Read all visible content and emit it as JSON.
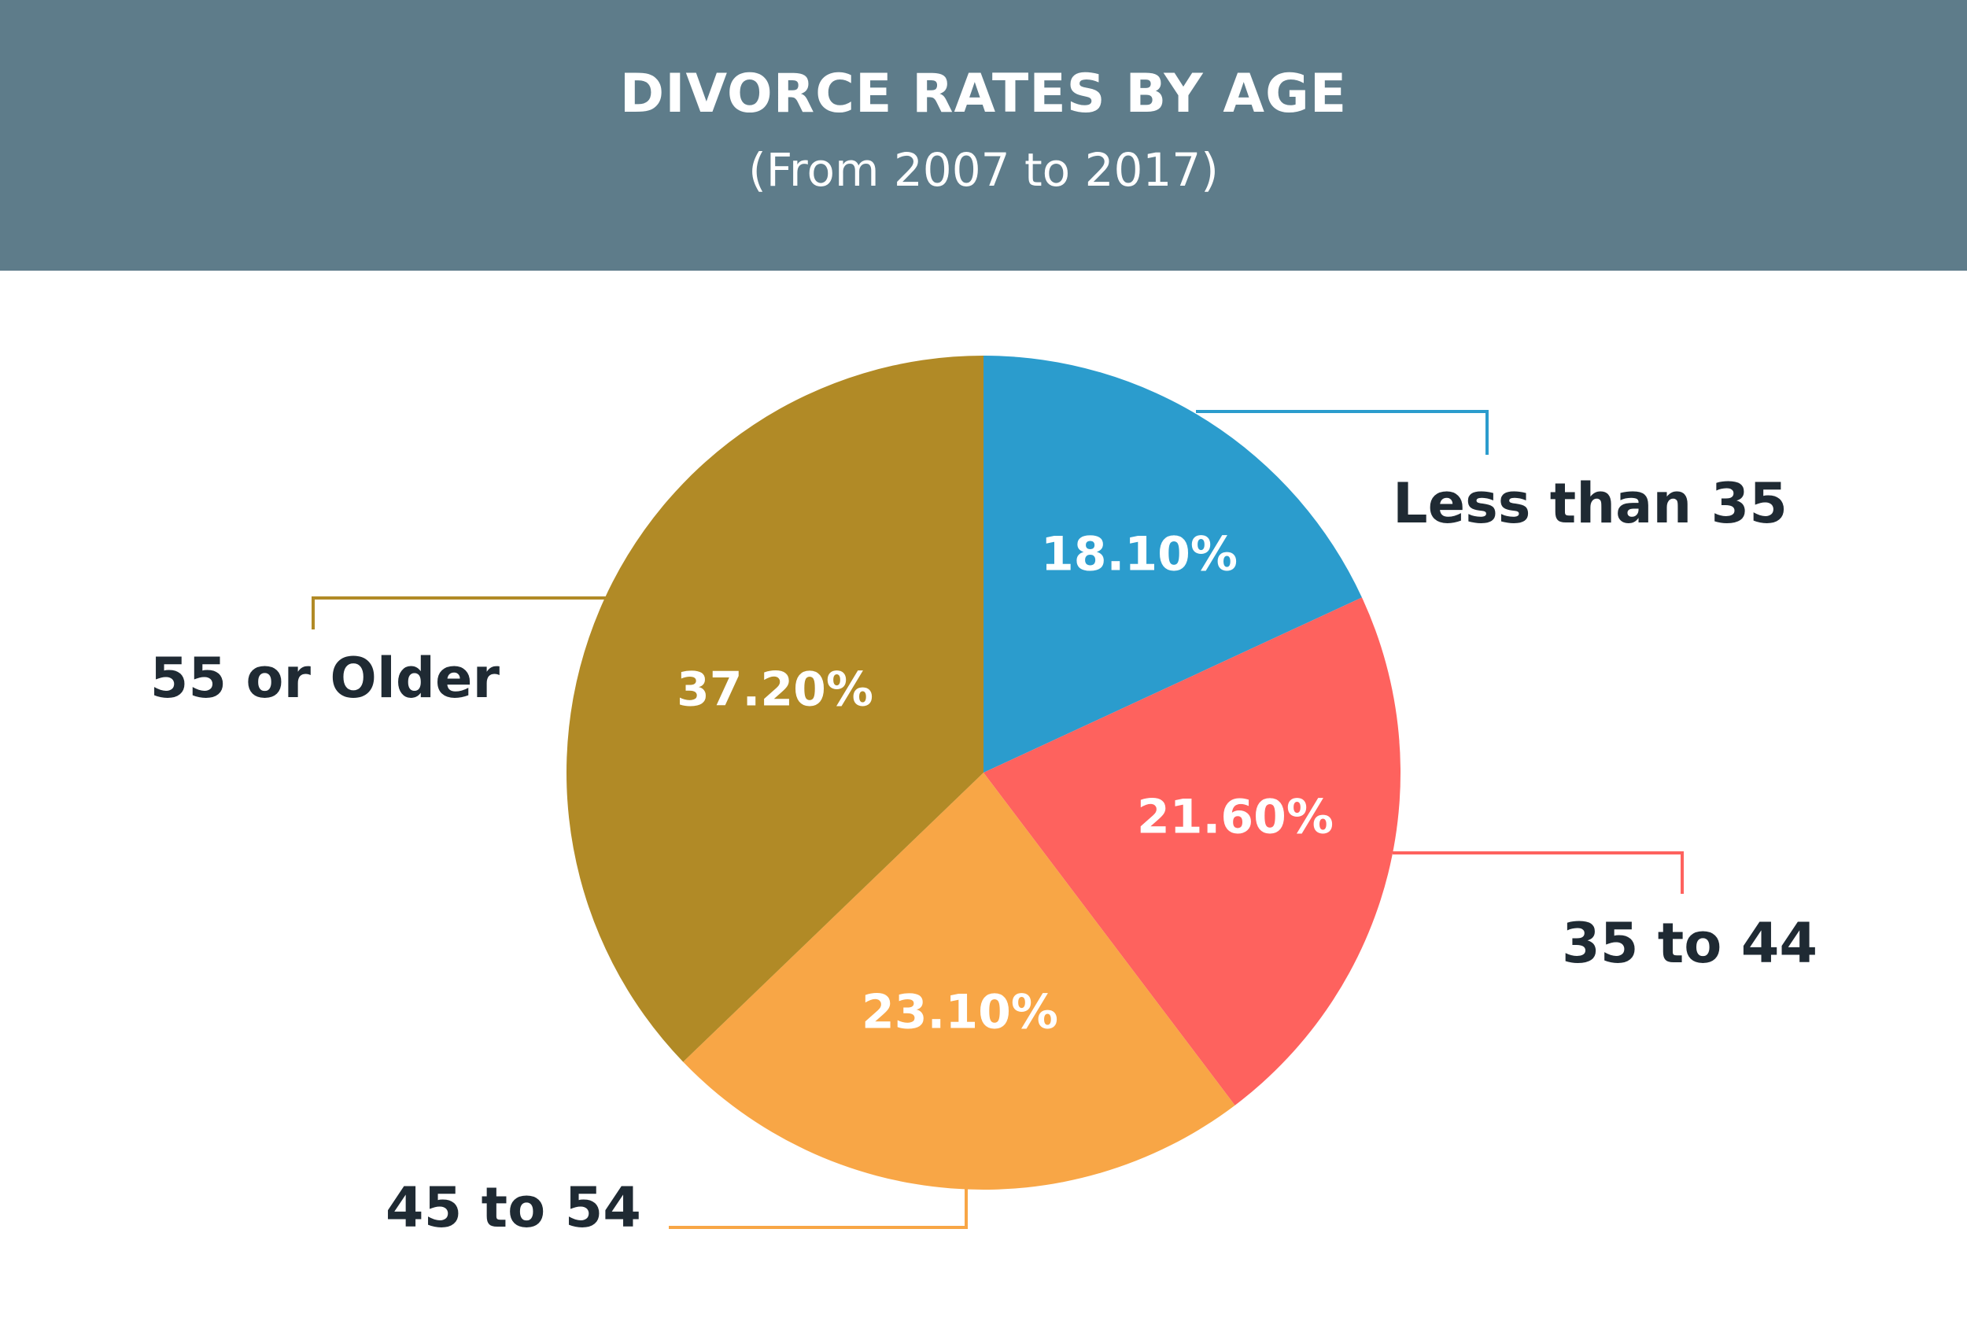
{
  "header": {
    "title": "DIVORCE RATES BY AGE",
    "subtitle": "(From 2007 to 2017)"
  },
  "colors": {
    "header_bg": "#5e7c8a",
    "label_text": "#1f2a33",
    "slice_text": "#ffffff"
  },
  "chart_data": {
    "type": "pie",
    "title": "DIVORCE RATES BY AGE",
    "subtitle": "(From 2007 to 2017)",
    "slices": [
      {
        "label": "Less than 35",
        "value": 18.1,
        "display": "18.10%",
        "color": "#2b9ccd"
      },
      {
        "label": "35 to 44",
        "value": 21.6,
        "display": "21.60%",
        "color": "#fe625e"
      },
      {
        "label": "45 to 54",
        "value": 23.1,
        "display": "23.10%",
        "color": "#f8a646"
      },
      {
        "label": "55 or Older",
        "value": 37.2,
        "display": "37.20%",
        "color": "#b18a26"
      }
    ]
  }
}
